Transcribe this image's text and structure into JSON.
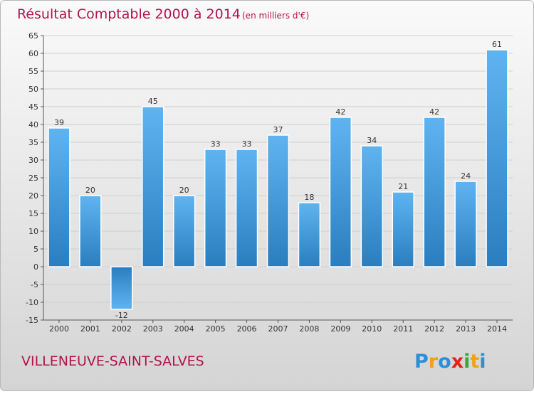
{
  "title_main": "Résultat Comptable 2000 à 2014",
  "title_unit": "(en milliers d'€)",
  "town": "VILLENEUVE-SAINT-SALVES",
  "brand": {
    "name": "Proxiti",
    "letters": [
      "P",
      "r",
      "o",
      "x",
      "i",
      "t",
      "i"
    ],
    "letter_colors": [
      "#2e8fd6",
      "#f0a21c",
      "#2e8fd6",
      "#e2231a",
      "#3aa839",
      "#f0a21c",
      "#2e8fd6"
    ]
  },
  "colors": {
    "title": "#b5124d",
    "town": "#b5124d",
    "bar_light": "#5fb4f0",
    "bar_dark": "#2a7ebf",
    "grid": "#cfcfcf",
    "axis": "#555555"
  },
  "chart_data": {
    "type": "bar",
    "title": "Résultat Comptable 2000 à 2014",
    "subtitle": "(en milliers d'€)",
    "xlabel": "",
    "ylabel": "",
    "categories": [
      "2000",
      "2001",
      "2002",
      "2003",
      "2004",
      "2005",
      "2006",
      "2007",
      "2008",
      "2009",
      "2010",
      "2011",
      "2012",
      "2013",
      "2014"
    ],
    "values": [
      39,
      20,
      -12,
      45,
      20,
      33,
      33,
      37,
      18,
      42,
      34,
      21,
      42,
      24,
      61
    ],
    "ylim": [
      -15,
      65
    ],
    "yticks": [
      -15,
      -10,
      -5,
      0,
      5,
      10,
      15,
      20,
      25,
      30,
      35,
      40,
      45,
      50,
      55,
      60,
      65
    ],
    "grid": true
  }
}
